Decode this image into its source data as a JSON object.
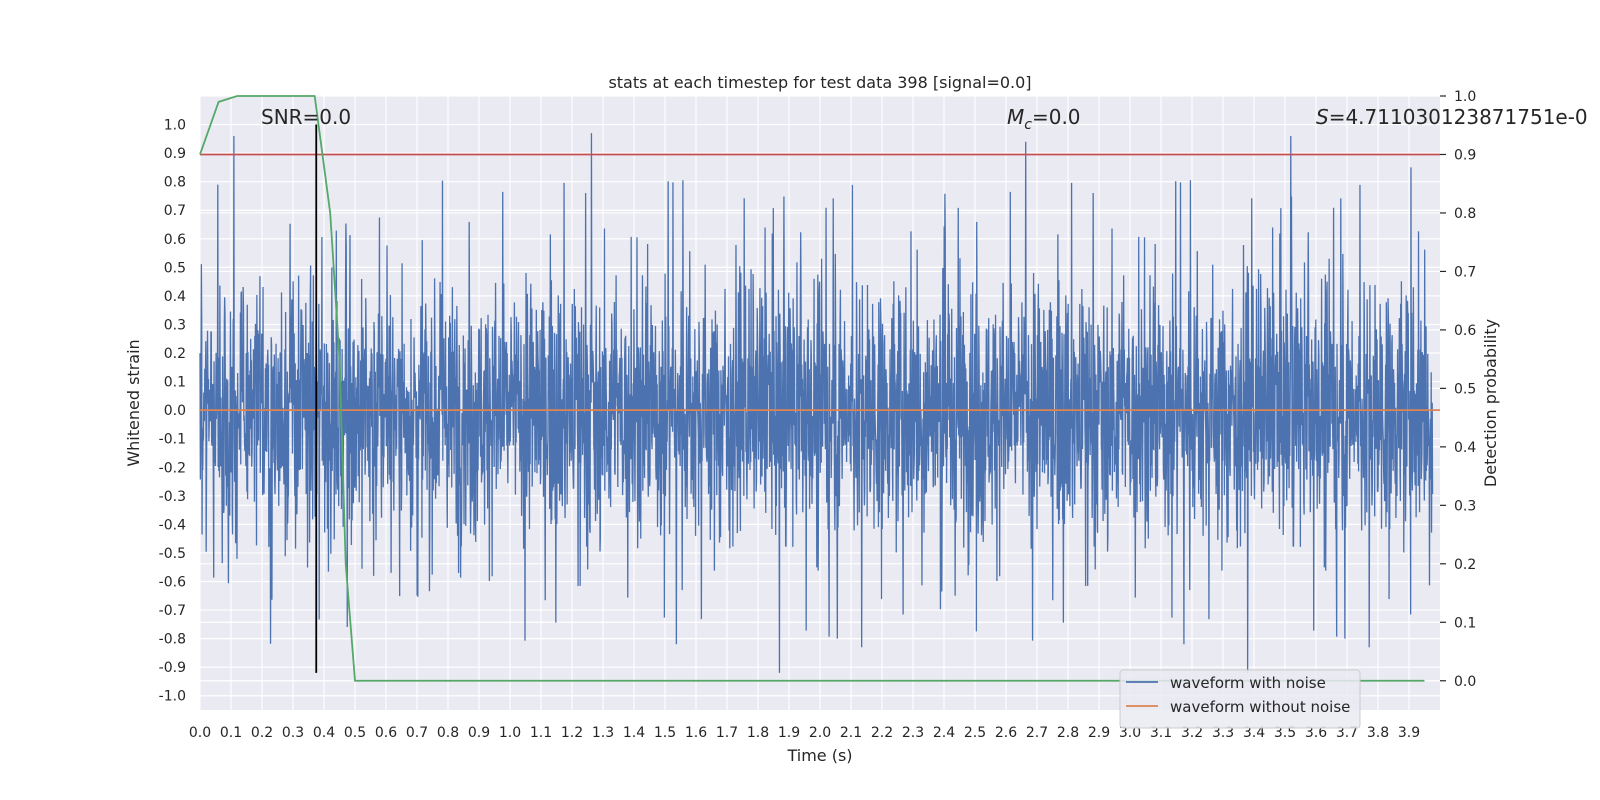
{
  "chart_data": {
    "type": "line",
    "title": "stats at each timestep for test data 398 [signal=0.0]",
    "xlabel": "Time (s)",
    "ylabel": "Whitened strain",
    "ylabel_right": "Detection probability",
    "xlim": [
      0.0,
      4.0
    ],
    "ylim": [
      -1.05,
      1.1
    ],
    "ylim_right": [
      -0.05,
      1.0
    ],
    "x_ticks": [
      "0.0",
      "0.1",
      "0.2",
      "0.3",
      "0.4",
      "0.5",
      "0.6",
      "0.7",
      "0.8",
      "0.9",
      "1.0",
      "1.1",
      "1.2",
      "1.3",
      "1.4",
      "1.5",
      "1.6",
      "1.7",
      "1.8",
      "1.9",
      "2.0",
      "2.1",
      "2.2",
      "2.3",
      "2.4",
      "2.5",
      "2.6",
      "2.7",
      "2.8",
      "2.9",
      "3.0",
      "3.1",
      "3.2",
      "3.3",
      "3.4",
      "3.5",
      "3.6",
      "3.7",
      "3.8",
      "3.9"
    ],
    "y_ticks": [
      "1.0",
      "0.9",
      "0.8",
      "0.7",
      "0.6",
      "0.5",
      "0.4",
      "0.3",
      "0.2",
      "0.1",
      "0.0",
      "-0.1",
      "-0.2",
      "-0.3",
      "-0.4",
      "-0.5",
      "-0.6",
      "-0.7",
      "-0.8",
      "-0.9",
      "-1.0"
    ],
    "y_ticks_right": [
      "1.0",
      "0.9",
      "0.8",
      "0.7",
      "0.6",
      "0.5",
      "0.4",
      "0.3",
      "0.2",
      "0.1",
      "0.0"
    ],
    "annotations": {
      "snr": "SNR=0.0",
      "mc_symbol": "M",
      "mc_sub": "c",
      "mc_value": "=0.0",
      "s_symbol": "S",
      "s_value": "=4.711030123871751e-0"
    },
    "legend": {
      "placement": "bottom-right",
      "entries": [
        {
          "label": "waveform with noise",
          "color": "#4c72b0"
        },
        {
          "label": "waveform without noise",
          "color": "#dd8452"
        }
      ]
    },
    "series": [
      {
        "name": "waveform with noise",
        "color": "#4c72b0",
        "axis": "left",
        "description": "dense whitened noise, approx. +/-0.3 typical, spikes to about +/-0.95",
        "peaks": [
          {
            "x": 0.11,
            "y": 0.96
          },
          {
            "x": 1.27,
            "y": 0.97
          },
          {
            "x": 3.54,
            "y": 0.96
          },
          {
            "x": 2.68,
            "y": 0.94
          },
          {
            "x": 3.93,
            "y": 0.85
          },
          {
            "x": 3.4,
            "y": -0.92
          },
          {
            "x": 1.88,
            "y": -0.92
          }
        ]
      },
      {
        "name": "waveform without noise",
        "color": "#dd8452",
        "axis": "left",
        "x": [
          0.0,
          4.0
        ],
        "y": [
          0.0,
          0.0
        ]
      },
      {
        "name": "detection probability",
        "color": "#55a868",
        "axis": "right",
        "x": [
          0.0,
          0.06,
          0.12,
          0.2,
          0.3,
          0.37,
          0.42,
          0.45,
          0.47,
          0.5,
          0.6,
          1.0,
          2.0,
          3.0,
          3.95
        ],
        "y": [
          0.9,
          0.99,
          1.0,
          1.0,
          1.0,
          1.0,
          0.8,
          0.55,
          0.2,
          0.0,
          0.0,
          0.0,
          0.0,
          0.0,
          0.0
        ]
      }
    ],
    "threshold": {
      "color": "#c44e52",
      "axis": "right",
      "value": 0.9
    },
    "marker_line": {
      "color": "#000000",
      "x": 0.375,
      "y_from": -0.92,
      "y_to": 1.0
    }
  }
}
